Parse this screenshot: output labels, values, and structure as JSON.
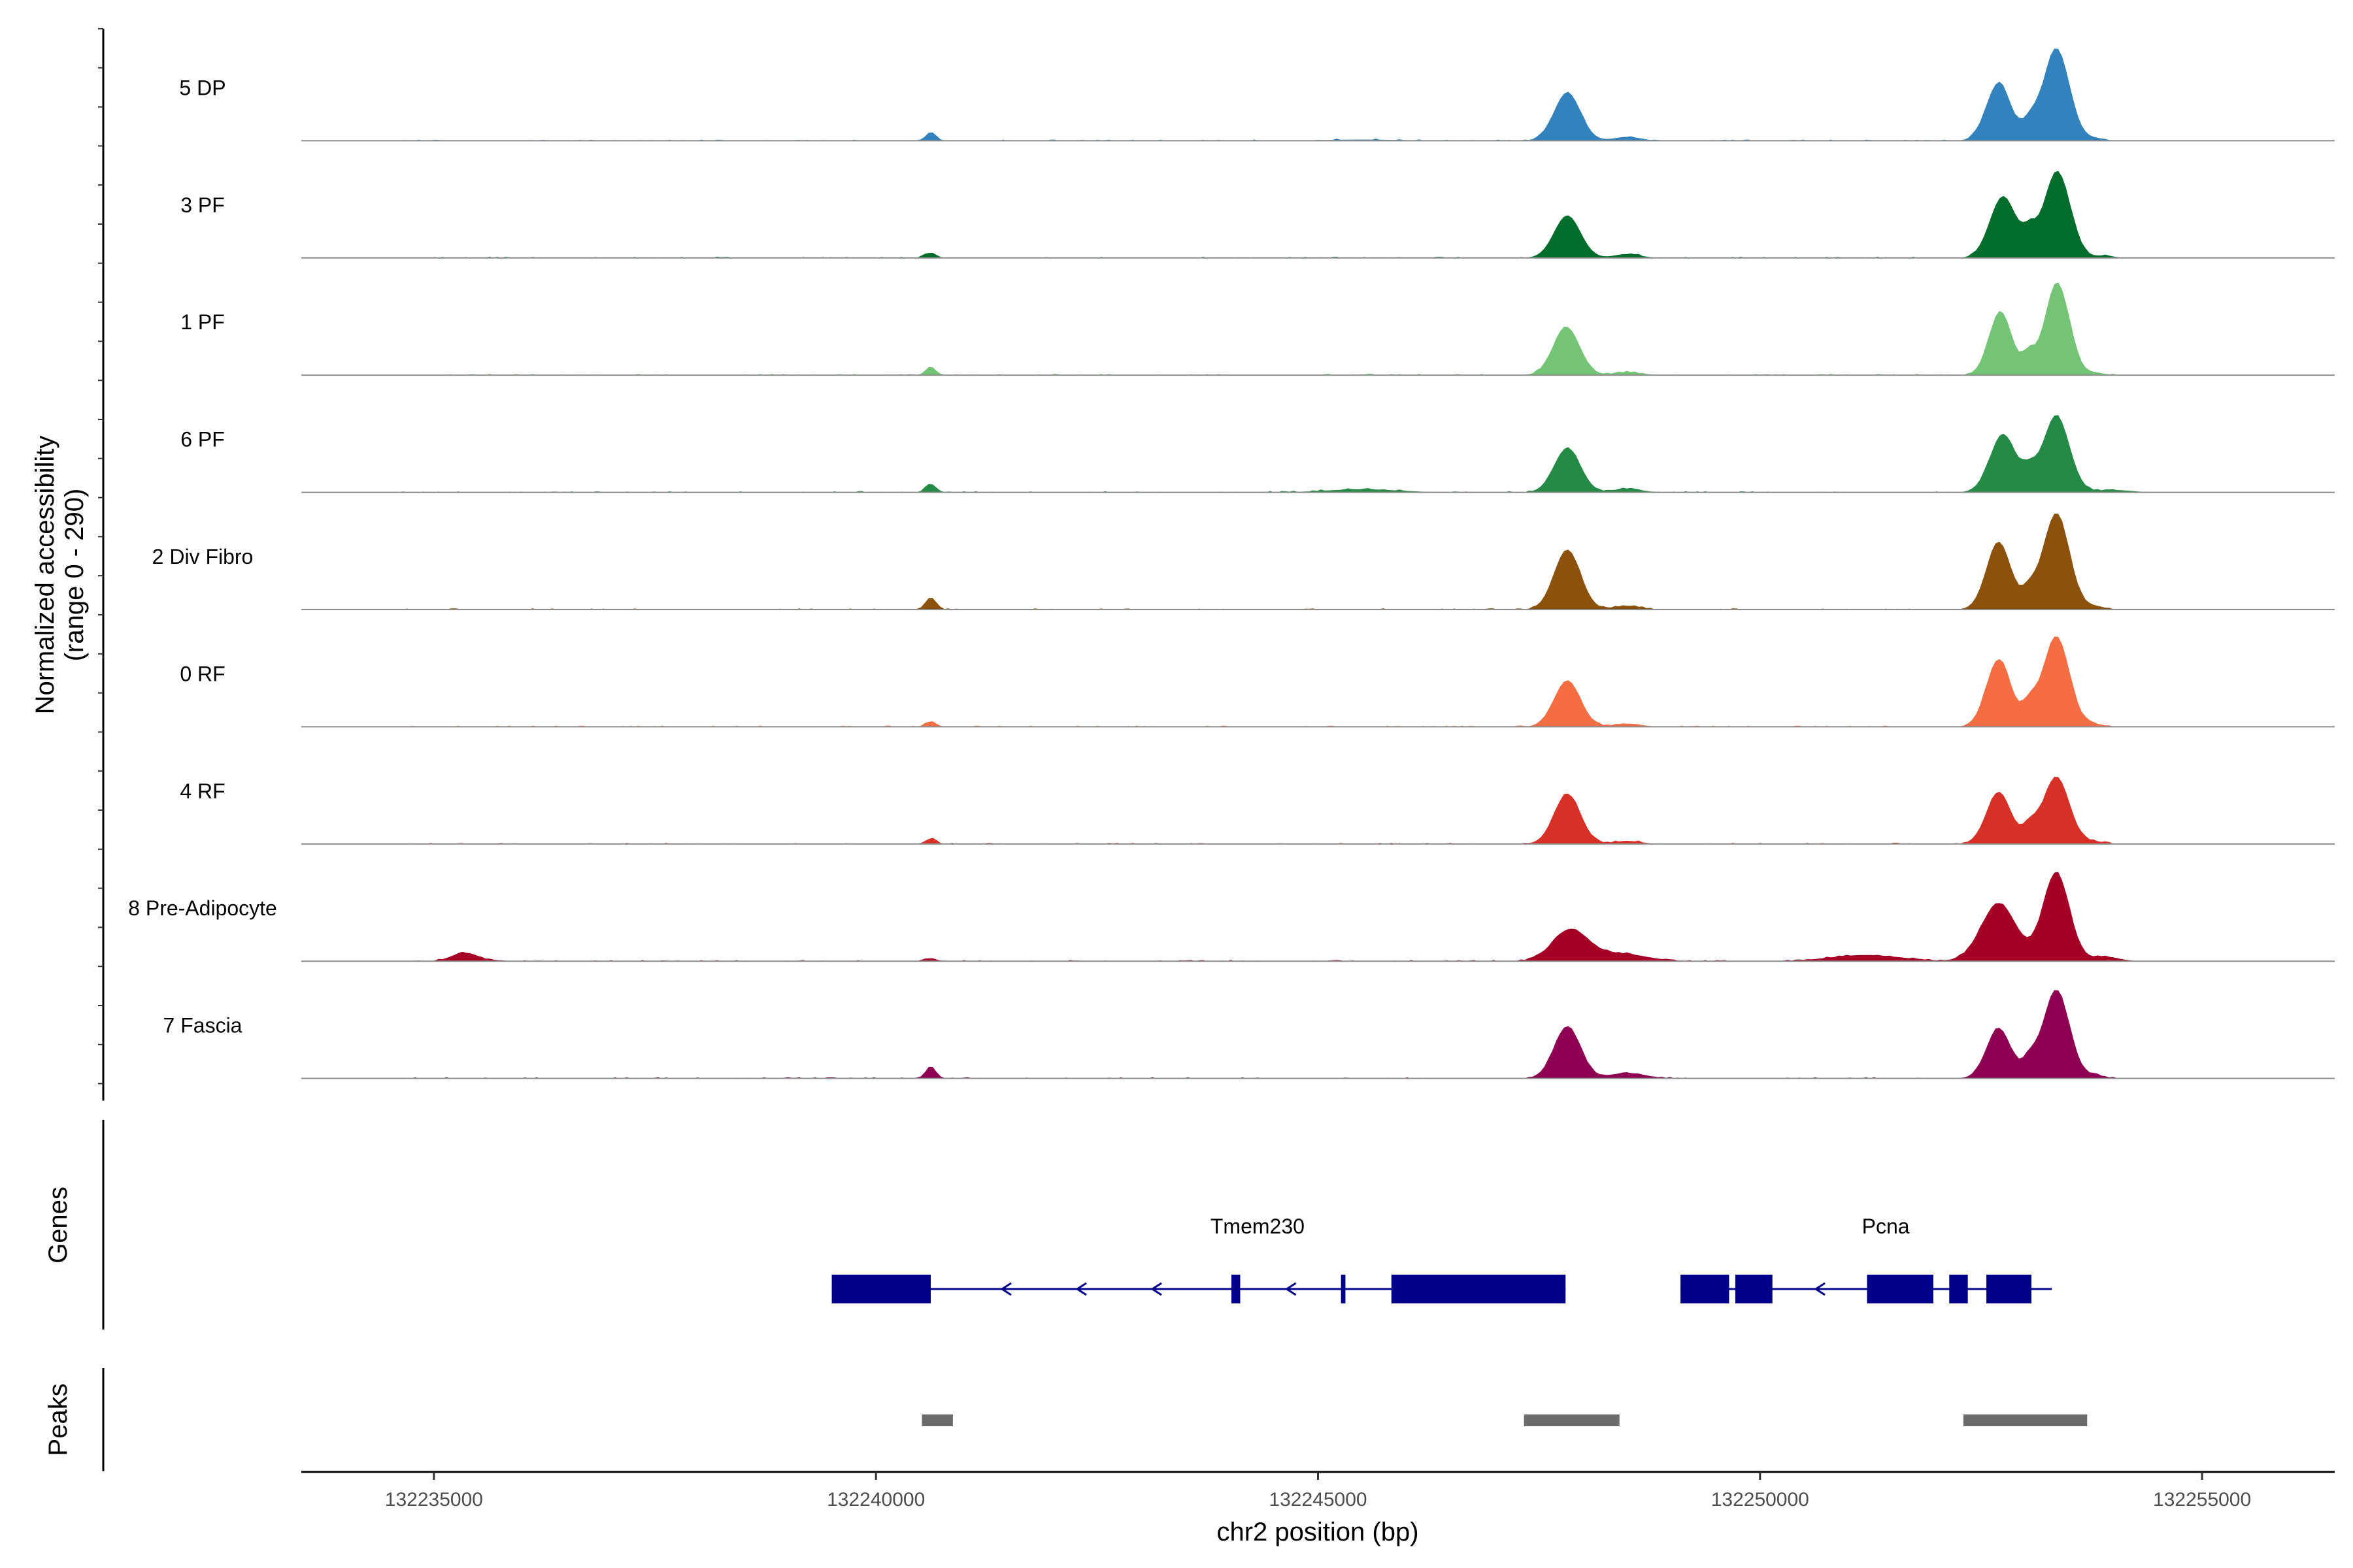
{
  "chart_data": {
    "type": "area",
    "title": "",
    "ylabel_line1": "Normalized accessibility",
    "ylabel_line2": "(range 0 - 290)",
    "y_range": [
      0,
      290
    ],
    "xlabel": "chr2 position (bp)",
    "x_range": [
      132233500,
      132256500
    ],
    "x_ticks": [
      132235000,
      132240000,
      132245000,
      132250000,
      132255000
    ],
    "x_tick_labels": [
      "132235000",
      "132240000",
      "132245000",
      "132250000",
      "132255000"
    ],
    "tracks": [
      {
        "name": "5 DP",
        "color": "#3182bd",
        "peaks": [
          [
            132240620,
            20,
            60
          ],
          [
            132245500,
            3,
            400
          ],
          [
            132247820,
            125,
            150
          ],
          [
            132248500,
            10,
            150
          ],
          [
            132252700,
            150,
            140
          ],
          [
            132253050,
            40,
            80
          ],
          [
            132253350,
            240,
            150
          ],
          [
            132253800,
            6,
            100
          ]
        ]
      },
      {
        "name": "3 PF",
        "color": "#006d2c",
        "peaks": [
          [
            132240620,
            14,
            60
          ],
          [
            132247820,
            110,
            150
          ],
          [
            132248500,
            10,
            150
          ],
          [
            132252750,
            160,
            150
          ],
          [
            132253050,
            50,
            80
          ],
          [
            132253360,
            225,
            150
          ],
          [
            132253900,
            6,
            100
          ]
        ]
      },
      {
        "name": "1 PF",
        "color": "#74c476",
        "peaks": [
          [
            132240620,
            20,
            60
          ],
          [
            132247810,
            125,
            150
          ],
          [
            132248500,
            8,
            150
          ],
          [
            132252720,
            165,
            130
          ],
          [
            132253040,
            48,
            70
          ],
          [
            132253360,
            240,
            140
          ],
          [
            132253800,
            6,
            100
          ]
        ]
      },
      {
        "name": "6 PF",
        "color": "#238b45",
        "peaks": [
          [
            132240620,
            22,
            60
          ],
          [
            132245500,
            8,
            400
          ],
          [
            132247820,
            115,
            150
          ],
          [
            132248500,
            10,
            150
          ],
          [
            132252750,
            150,
            150
          ],
          [
            132253050,
            40,
            80
          ],
          [
            132253350,
            200,
            150
          ],
          [
            132254000,
            6,
            200
          ]
        ]
      },
      {
        "name": "2 Div Fibro",
        "color": "#8c510a",
        "peaks": [
          [
            132240620,
            32,
            60
          ],
          [
            132247820,
            155,
            150
          ],
          [
            132248500,
            10,
            150
          ],
          [
            132252700,
            175,
            140
          ],
          [
            132253050,
            40,
            80
          ],
          [
            132253350,
            250,
            150
          ],
          [
            132253800,
            8,
            100
          ]
        ]
      },
      {
        "name": "0 RF",
        "color": "#f46d43",
        "peaks": [
          [
            132240620,
            14,
            60
          ],
          [
            132247820,
            120,
            150
          ],
          [
            132248500,
            8,
            150
          ],
          [
            132252700,
            175,
            140
          ],
          [
            132253050,
            50,
            80
          ],
          [
            132253350,
            235,
            150
          ],
          [
            132253800,
            6,
            100
          ]
        ]
      },
      {
        "name": "4 RF",
        "color": "#d73027",
        "peaks": [
          [
            132240620,
            14,
            60
          ],
          [
            132247820,
            130,
            150
          ],
          [
            132248500,
            8,
            150
          ],
          [
            132252700,
            135,
            140
          ],
          [
            132253050,
            40,
            80
          ],
          [
            132253350,
            175,
            150
          ],
          [
            132253800,
            6,
            100
          ]
        ]
      },
      {
        "name": "8 Pre-Adipocyte",
        "color": "#a50026",
        "peaks": [
          [
            132235350,
            22,
            150
          ],
          [
            132240620,
            8,
            60
          ],
          [
            132247850,
            80,
            200
          ],
          [
            132248400,
            20,
            300
          ],
          [
            132251200,
            16,
            400
          ],
          [
            132252700,
            150,
            200
          ],
          [
            132253350,
            230,
            150
          ],
          [
            132253900,
            12,
            150
          ]
        ]
      },
      {
        "name": "7 Fascia",
        "color": "#8e0152",
        "peaks": [
          [
            132240620,
            30,
            60
          ],
          [
            132247820,
            135,
            150
          ],
          [
            132248500,
            14,
            200
          ],
          [
            132252700,
            130,
            140
          ],
          [
            132253050,
            40,
            80
          ],
          [
            132253350,
            230,
            150
          ],
          [
            132253800,
            8,
            100
          ]
        ]
      }
    ],
    "genes": {
      "title": "Genes",
      "color": "#00008b",
      "items": [
        {
          "name": "Tmem230",
          "strand": "-",
          "start": 132239500,
          "end": 132247800,
          "exons": [
            [
              132239500,
              132240620
            ],
            [
              132244020,
              132244120
            ],
            [
              132245260,
              132245310
            ],
            [
              132245830,
              132247800
            ]
          ]
        },
        {
          "name": "Pcna",
          "strand": "-",
          "start": 132249100,
          "end": 132253300,
          "exons": [
            [
              132249100,
              132249650
            ],
            [
              132249720,
              132250140
            ],
            [
              132251210,
              132251960
            ],
            [
              132252140,
              132252350
            ],
            [
              132252560,
              132253070
            ]
          ]
        }
      ]
    },
    "peaks_track": {
      "title": "Peaks",
      "color": "#6b6b6b",
      "regions": [
        [
          132240520,
          132240870
        ],
        [
          132247330,
          132248410
        ],
        [
          132252300,
          132253700
        ]
      ]
    }
  }
}
